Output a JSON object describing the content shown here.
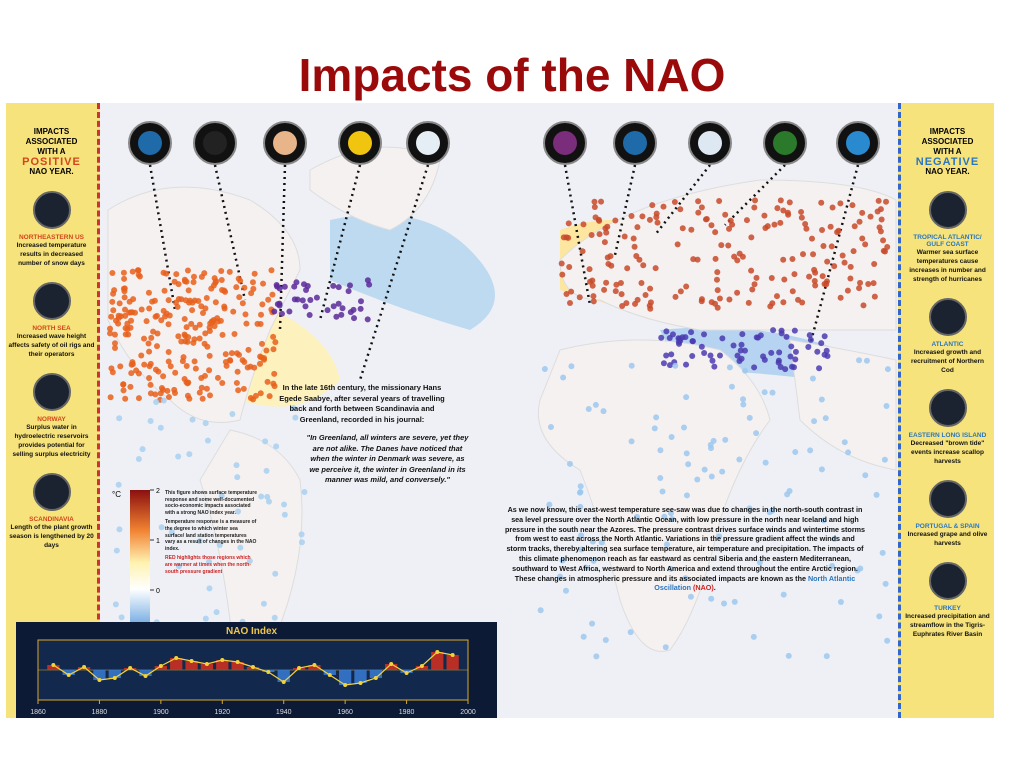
{
  "title": "Impacts of the NAO",
  "positive_panel": {
    "heading": "IMPACTS ASSOCIATED WITH A",
    "keyword": "POSITIVE",
    "suffix": "NAO YEAR.",
    "items": [
      {
        "region": "NORTHEASTERN US",
        "text": "Increased temperature results in decreased number of snow days"
      },
      {
        "region": "NORTH SEA",
        "text": "Increased wave height affects safety of oil rigs and their operators"
      },
      {
        "region": "NORWAY",
        "text": "Surplus water in hydroelectric reservoirs provides potential for selling surplus electricity"
      },
      {
        "region": "SCANDINAVIA",
        "text": "Length of the plant growth season is lengthened by 20 days"
      }
    ]
  },
  "negative_panel": {
    "heading": "IMPACTS ASSOCIATED WITH A",
    "keyword": "NEGATIVE",
    "suffix": "NAO YEAR.",
    "items": [
      {
        "region": "TROPICAL ATLANTIC/ GULF COAST",
        "text": "Warmer sea surface temperatures cause increases in number and strength of hurricanes"
      },
      {
        "region": "ATLANTIC",
        "text": "Increased growth and recruitment of Northern Cod"
      },
      {
        "region": "EASTERN LONG ISLAND",
        "text": "Decreased \"brown tide\" events increase scallop harvests"
      },
      {
        "region": "PORTUGAL & SPAIN",
        "text": "Increased grape and olive harvests"
      },
      {
        "region": "TURKEY",
        "text": "Increased precipitation and streamflow in the Tigris-Euphrates River Basin"
      }
    ]
  },
  "quote_intro": "In the late 16th century, the missionary Hans Egede Saabye, after several years of travelling back and forth between Scandinavia and Greenland, recorded in his journal:",
  "quote": "\"In Greenland, all winters are severe, yet they are not alike. The Danes have noticed that when the winter in Denmark was severe, as we perceive it, the winter in Greenland in its manner was mild, and conversely.\"",
  "explanation": {
    "text": "As we now know, this east-west temperature see-saw was due to changes in the north-south contrast in sea level pressure over the North Atlantic Ocean, with low pressure in the north near Iceland and high pressure in the south near the Azores. The pressure contrast drives surface winds and wintertime storms from west to east across the North Atlantic. Variations in the pressure gradient affect the winds and storm tracks, thereby altering sea surface temperature, air temperature and precipitation. The impacts of this climate phenomenon reach as far eastward as central Siberia and the eastern Mediterranean, southward to West Africa, westward to North America and extend throughout the entire Arctic region. These changes in atmospheric pressure and its associated impacts are known as the",
    "name": "North Atlantic Oscillation",
    "abbr": "(NAO)",
    "end": "."
  },
  "legend": {
    "unit": "°C",
    "ticks": [
      2,
      1,
      0
    ],
    "lim": [
      2,
      -1
    ],
    "note1": "This figure shows surface temperature response and some well-documented socio-economic impacts associated with a strong NAO index year.",
    "note2": "Temperature response is a measure of the degree to which winter sea surface/ land station temperatures vary as a result of changes in the NAO index.",
    "note3": "RED highlights those regions which are warmer at times when the north-south pressure gradient"
  },
  "nao_chart": {
    "type": "line",
    "title": "NAO Index",
    "x": [
      1865,
      1870,
      1875,
      1880,
      1885,
      1890,
      1895,
      1900,
      1905,
      1910,
      1915,
      1920,
      1925,
      1930,
      1935,
      1940,
      1945,
      1950,
      1955,
      1960,
      1965,
      1970,
      1975,
      1980,
      1985,
      1990,
      1995
    ],
    "values": [
      0.5,
      -0.5,
      0.3,
      -1,
      -0.8,
      0.2,
      -0.6,
      0.4,
      1.2,
      0.9,
      0.6,
      1,
      0.8,
      0.3,
      -0.2,
      -1.2,
      0.2,
      0.5,
      -0.5,
      -1.5,
      -1.3,
      -0.8,
      0.6,
      -0.3,
      0.4,
      1.8,
      1.5
    ],
    "xlim": [
      1860,
      2000
    ],
    "xticks": [
      1860,
      1880,
      1900,
      1920,
      1940,
      1960,
      1980,
      2000
    ],
    "ylim": [
      -3,
      3
    ]
  }
}
